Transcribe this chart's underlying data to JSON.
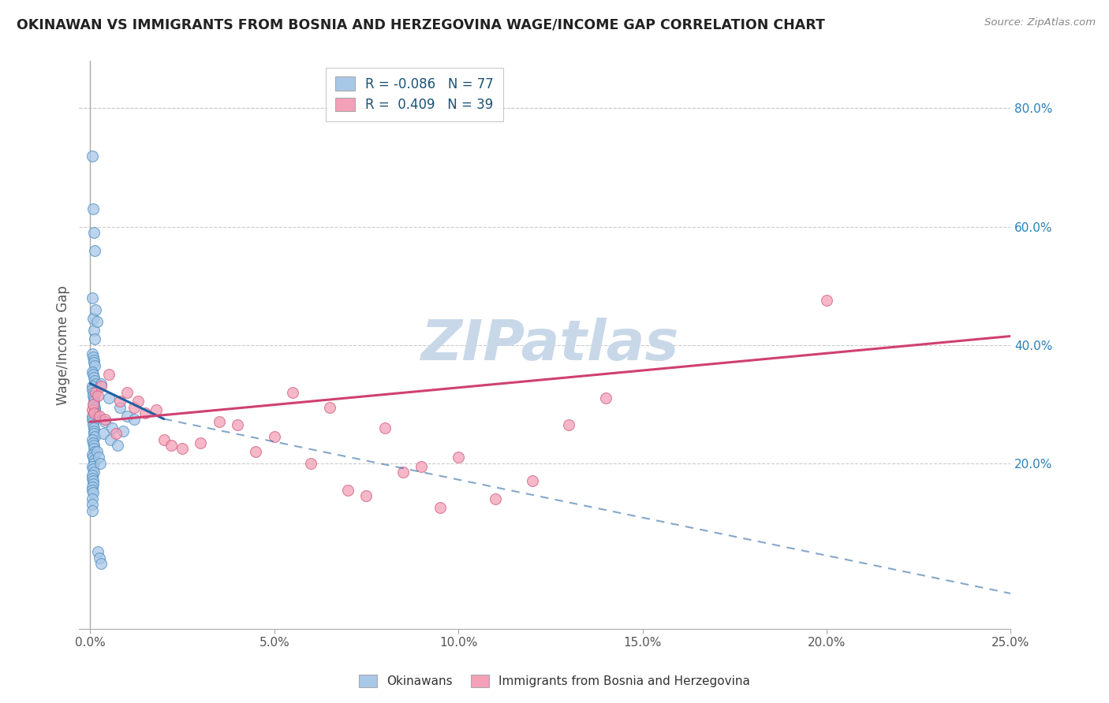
{
  "title": "OKINAWAN VS IMMIGRANTS FROM BOSNIA AND HERZEGOVINA WAGE/INCOME GAP CORRELATION CHART",
  "source": "Source: ZipAtlas.com",
  "xlabel_ticks": [
    "0.0%",
    "5.0%",
    "10.0%",
    "15.0%",
    "20.0%",
    "25.0%"
  ],
  "xlabel_vals": [
    0.0,
    5.0,
    10.0,
    15.0,
    20.0,
    25.0
  ],
  "ylabel": "Wage/Income Gap",
  "right_yticks": [
    20.0,
    40.0,
    60.0,
    80.0
  ],
  "xlim": [
    -0.3,
    25.0
  ],
  "ylim": [
    -8.0,
    88.0
  ],
  "blue_R": -0.086,
  "blue_N": 77,
  "pink_R": 0.409,
  "pink_N": 39,
  "blue_color": "#a8c8e8",
  "pink_color": "#f4a0b8",
  "blue_edge_color": "#5090c0",
  "pink_edge_color": "#d06080",
  "blue_line_color": "#2060a0",
  "pink_line_color": "#d04070",
  "blue_scatter_x": [
    0.05,
    0.08,
    0.1,
    0.12,
    0.05,
    0.08,
    0.1,
    0.12,
    0.15,
    0.18,
    0.05,
    0.07,
    0.09,
    0.11,
    0.13,
    0.06,
    0.08,
    0.1,
    0.12,
    0.14,
    0.05,
    0.06,
    0.07,
    0.08,
    0.09,
    0.1,
    0.11,
    0.12,
    0.13,
    0.14,
    0.05,
    0.06,
    0.07,
    0.08,
    0.09,
    0.1,
    0.11,
    0.12,
    0.05,
    0.07,
    0.09,
    0.11,
    0.13,
    0.05,
    0.07,
    0.09,
    0.11,
    0.05,
    0.07,
    0.09,
    0.05,
    0.06,
    0.07,
    0.08,
    0.05,
    0.06,
    0.07,
    0.05,
    0.06,
    0.05,
    0.3,
    0.5,
    0.8,
    1.0,
    1.2,
    0.4,
    0.6,
    0.9,
    0.35,
    0.55,
    0.75,
    0.2,
    0.25,
    0.3,
    0.18,
    0.22,
    0.28
  ],
  "blue_scatter_y": [
    72.0,
    63.0,
    59.0,
    56.0,
    48.0,
    44.5,
    42.5,
    41.0,
    46.0,
    44.0,
    38.5,
    38.0,
    37.5,
    37.0,
    36.5,
    35.5,
    35.0,
    34.5,
    34.0,
    33.5,
    33.0,
    32.5,
    32.0,
    31.5,
    31.0,
    30.5,
    30.0,
    29.5,
    29.0,
    28.5,
    28.0,
    27.5,
    27.0,
    26.5,
    26.0,
    25.5,
    25.0,
    24.5,
    24.0,
    23.5,
    23.0,
    22.5,
    22.0,
    21.5,
    21.0,
    20.5,
    20.0,
    19.5,
    19.0,
    18.5,
    18.0,
    17.5,
    17.0,
    16.5,
    16.0,
    15.5,
    15.0,
    14.0,
    13.0,
    12.0,
    33.5,
    31.0,
    29.5,
    28.0,
    27.5,
    27.0,
    26.0,
    25.5,
    25.0,
    24.0,
    23.0,
    5.0,
    4.0,
    3.0,
    22.0,
    21.0,
    20.0
  ],
  "pink_scatter_x": [
    0.05,
    0.08,
    0.1,
    0.15,
    0.2,
    0.3,
    0.5,
    0.8,
    1.0,
    1.2,
    1.5,
    1.8,
    2.0,
    2.5,
    3.0,
    3.5,
    4.0,
    4.5,
    5.0,
    5.5,
    6.0,
    6.5,
    7.0,
    7.5,
    8.0,
    8.5,
    9.0,
    9.5,
    10.0,
    11.0,
    12.0,
    13.0,
    14.0,
    20.0,
    0.25,
    0.4,
    0.7,
    1.3,
    2.2
  ],
  "pink_scatter_y": [
    29.0,
    30.0,
    28.5,
    32.0,
    31.5,
    33.0,
    35.0,
    30.5,
    32.0,
    29.5,
    28.5,
    29.0,
    24.0,
    22.5,
    23.5,
    27.0,
    26.5,
    22.0,
    24.5,
    32.0,
    20.0,
    29.5,
    15.5,
    14.5,
    26.0,
    18.5,
    19.5,
    12.5,
    21.0,
    14.0,
    17.0,
    26.5,
    31.0,
    47.5,
    28.0,
    27.5,
    25.0,
    30.5,
    23.0
  ],
  "blue_line_x0": 0.0,
  "blue_line_y0": 33.5,
  "blue_line_x1": 2.0,
  "blue_line_y1": 27.5,
  "blue_dash_x0": 2.0,
  "blue_dash_y0": 27.5,
  "blue_dash_x1": 25.0,
  "blue_dash_y1": -2.0,
  "pink_line_x0": 0.0,
  "pink_line_y0": 27.0,
  "pink_line_x1": 25.0,
  "pink_line_y1": 41.5,
  "legend_label_blue": "Okinawans",
  "legend_label_pink": "Immigrants from Bosnia and Herzegovina",
  "watermark": "ZIPatlas",
  "watermark_color": "#c8d8e8",
  "background_color": "#ffffff",
  "grid_color": "#cccccc"
}
